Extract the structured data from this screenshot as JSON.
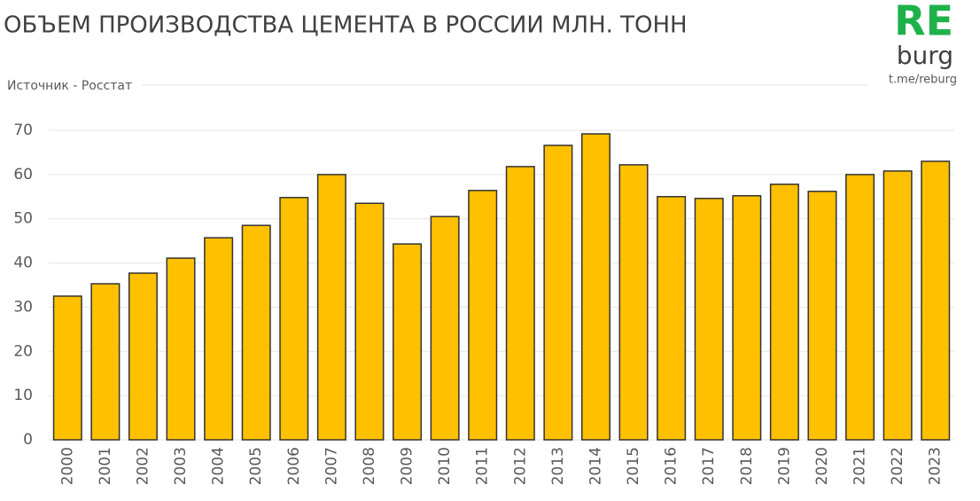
{
  "chart_data": {
    "type": "bar",
    "title": "ОБЪЕМ ПРОИЗВОДСТВА ЦЕМЕНТА В РОССИИ МЛН. ТОНН",
    "subtitle": "Источник - Росстат",
    "logo": {
      "mark": "RE",
      "name": "burg",
      "link": "t.me/reburg"
    },
    "categories": [
      "2000",
      "2001",
      "2002",
      "2003",
      "2004",
      "2005",
      "2006",
      "2007",
      "2008",
      "2009",
      "2010",
      "2011",
      "2012",
      "2013",
      "2014",
      "2015",
      "2016",
      "2017",
      "2018",
      "2019",
      "2020",
      "2021",
      "2022",
      "2023"
    ],
    "values": [
      32.5,
      35.3,
      37.7,
      41.1,
      45.7,
      48.5,
      54.8,
      60.0,
      53.5,
      44.3,
      50.5,
      56.4,
      61.8,
      66.6,
      69.2,
      62.2,
      55.0,
      54.6,
      55.2,
      57.8,
      56.2,
      60.0,
      60.8,
      63.0
    ],
    "color": "#ffc000",
    "ylim": [
      0,
      70
    ],
    "yticks": [
      0,
      10,
      20,
      30,
      40,
      50,
      60,
      70
    ],
    "grid": true
  }
}
